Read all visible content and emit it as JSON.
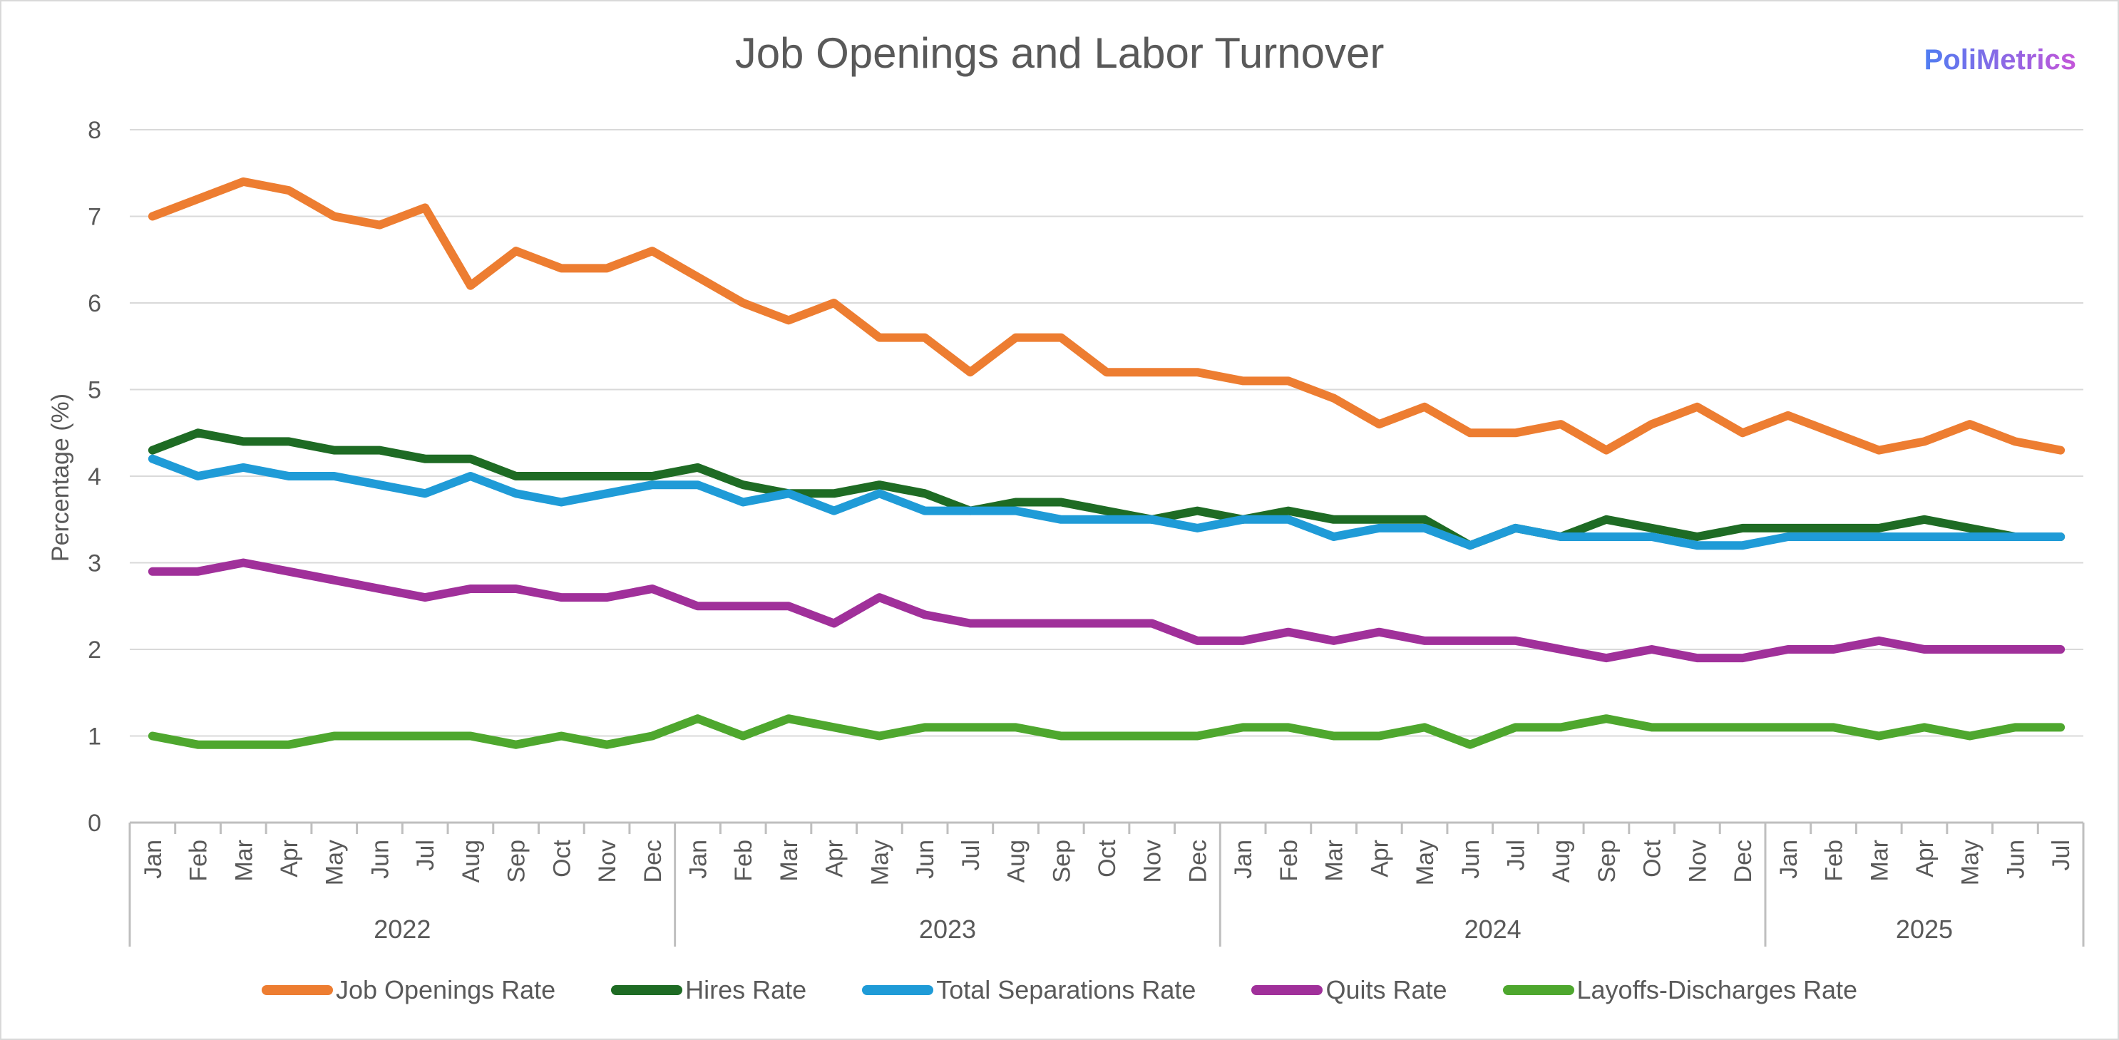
{
  "chart_data": {
    "type": "line",
    "title": "Job Openings and Labor Turnover",
    "brand": "PoliMetrics",
    "ylabel": "Percentage (%)",
    "xlabel": "",
    "ylim": [
      0,
      8
    ],
    "yticks": [
      0,
      1,
      2,
      3,
      4,
      5,
      6,
      7,
      8
    ],
    "grid": true,
    "legend_position": "bottom",
    "months": [
      "Jan",
      "Feb",
      "Mar",
      "Apr",
      "May",
      "Jun",
      "Jul",
      "Aug",
      "Sep",
      "Oct",
      "Nov",
      "Dec",
      "Jan",
      "Feb",
      "Mar",
      "Apr",
      "May",
      "Jun",
      "Jul",
      "Aug",
      "Sep",
      "Oct",
      "Nov",
      "Dec",
      "Jan",
      "Feb",
      "Mar",
      "Apr",
      "May",
      "Jun",
      "Jul",
      "Aug",
      "Sep",
      "Oct",
      "Nov",
      "Dec",
      "Jan",
      "Feb",
      "Mar",
      "Apr",
      "May",
      "Jun",
      "Jul"
    ],
    "years": [
      {
        "label": "2022",
        "start": 0,
        "count": 12
      },
      {
        "label": "2023",
        "start": 12,
        "count": 12
      },
      {
        "label": "2024",
        "start": 24,
        "count": 12
      },
      {
        "label": "2025",
        "start": 36,
        "count": 7
      }
    ],
    "series": [
      {
        "name": "Job Openings Rate",
        "color": "#ed7d31",
        "values": [
          7.0,
          7.2,
          7.4,
          7.3,
          7.0,
          6.9,
          7.1,
          6.2,
          6.6,
          6.4,
          6.4,
          6.6,
          6.3,
          6.0,
          5.8,
          6.0,
          5.6,
          5.6,
          5.2,
          5.6,
          5.6,
          5.2,
          5.2,
          5.2,
          5.1,
          5.1,
          4.9,
          4.6,
          4.8,
          4.5,
          4.5,
          4.6,
          4.3,
          4.6,
          4.8,
          4.5,
          4.7,
          4.5,
          4.3,
          4.4,
          4.6,
          4.4,
          4.3
        ]
      },
      {
        "name": "Hires Rate",
        "color": "#1e6b24",
        "values": [
          4.3,
          4.5,
          4.4,
          4.4,
          4.3,
          4.3,
          4.2,
          4.2,
          4.0,
          4.0,
          4.0,
          4.0,
          4.1,
          3.9,
          3.8,
          3.8,
          3.9,
          3.8,
          3.6,
          3.7,
          3.7,
          3.6,
          3.5,
          3.6,
          3.5,
          3.6,
          3.5,
          3.5,
          3.5,
          3.2,
          3.4,
          3.3,
          3.5,
          3.4,
          3.3,
          3.4,
          3.4,
          3.4,
          3.4,
          3.5,
          3.4,
          3.3,
          3.3
        ]
      },
      {
        "name": "Total Separations Rate",
        "color": "#1f9bd7",
        "values": [
          4.2,
          4.0,
          4.1,
          4.0,
          4.0,
          3.9,
          3.8,
          4.0,
          3.8,
          3.7,
          3.8,
          3.9,
          3.9,
          3.7,
          3.8,
          3.6,
          3.8,
          3.6,
          3.6,
          3.6,
          3.5,
          3.5,
          3.5,
          3.4,
          3.5,
          3.5,
          3.3,
          3.4,
          3.4,
          3.2,
          3.4,
          3.3,
          3.3,
          3.3,
          3.2,
          3.2,
          3.3,
          3.3,
          3.3,
          3.3,
          3.3,
          3.3,
          3.3
        ]
      },
      {
        "name": "Quits Rate",
        "color": "#a0309a",
        "values": [
          2.9,
          2.9,
          3.0,
          2.9,
          2.8,
          2.7,
          2.6,
          2.7,
          2.7,
          2.6,
          2.6,
          2.7,
          2.5,
          2.5,
          2.5,
          2.3,
          2.6,
          2.4,
          2.3,
          2.3,
          2.3,
          2.3,
          2.3,
          2.1,
          2.1,
          2.2,
          2.1,
          2.2,
          2.1,
          2.1,
          2.1,
          2.0,
          1.9,
          2.0,
          1.9,
          1.9,
          2.0,
          2.0,
          2.1,
          2.0,
          2.0,
          2.0,
          2.0
        ]
      },
      {
        "name": "Layoffs-Discharges Rate",
        "color": "#4ea72e",
        "values": [
          1.0,
          0.9,
          0.9,
          0.9,
          1.0,
          1.0,
          1.0,
          1.0,
          0.9,
          1.0,
          0.9,
          1.0,
          1.2,
          1.0,
          1.2,
          1.1,
          1.0,
          1.1,
          1.1,
          1.1,
          1.0,
          1.0,
          1.0,
          1.0,
          1.1,
          1.1,
          1.0,
          1.0,
          1.1,
          0.9,
          1.1,
          1.1,
          1.2,
          1.1,
          1.1,
          1.1,
          1.1,
          1.1,
          1.0,
          1.1,
          1.0,
          1.1,
          1.1
        ]
      }
    ]
  }
}
